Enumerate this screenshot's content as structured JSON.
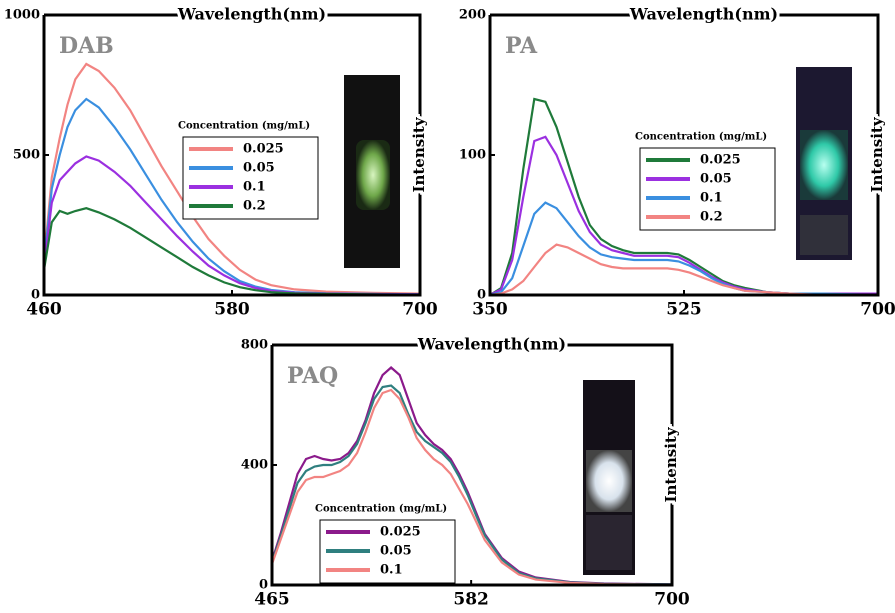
{
  "chart_data": [
    {
      "type": "line",
      "title": "DAB",
      "x_label": "Wavelength(nm)",
      "y_label": "Intensity",
      "legend_title": "Concentration (mg/mL)",
      "xlim": [
        460,
        700
      ],
      "xticks": [
        460,
        580,
        700
      ],
      "ylim": [
        0,
        1000
      ],
      "yticks": [
        0,
        500,
        1000
      ],
      "x": [
        460,
        465,
        470,
        475,
        480,
        487,
        495,
        505,
        515,
        525,
        535,
        545,
        555,
        565,
        575,
        585,
        595,
        605,
        620,
        640,
        670,
        700
      ],
      "series": [
        {
          "name": "0.025",
          "color": "#f28482",
          "values": [
            120,
            420,
            560,
            680,
            770,
            825,
            800,
            740,
            660,
            560,
            460,
            370,
            280,
            200,
            140,
            90,
            55,
            35,
            20,
            12,
            8,
            5
          ]
        },
        {
          "name": "0.05",
          "color": "#3a8fe0",
          "values": [
            110,
            380,
            500,
            600,
            660,
            700,
            670,
            600,
            520,
            430,
            340,
            260,
            190,
            130,
            85,
            50,
            30,
            18,
            10,
            6,
            4,
            3
          ]
        },
        {
          "name": "0.1",
          "color": "#9b30e0",
          "values": [
            100,
            330,
            410,
            440,
            470,
            495,
            480,
            440,
            390,
            330,
            270,
            210,
            155,
            105,
            70,
            42,
            25,
            15,
            8,
            5,
            3,
            2
          ]
        },
        {
          "name": "0.2",
          "color": "#1f7a3a",
          "values": [
            90,
            260,
            300,
            290,
            300,
            310,
            295,
            270,
            240,
            205,
            170,
            135,
            100,
            70,
            45,
            28,
            17,
            10,
            6,
            4,
            2,
            1
          ]
        }
      ]
    },
    {
      "type": "line",
      "title": "PA",
      "x_label": "Wavelength(nm)",
      "y_label": "Intensity",
      "legend_title": "Concentration (mg/mL)",
      "xlim": [
        350,
        700
      ],
      "xticks": [
        350,
        525,
        700
      ],
      "ylim": [
        0,
        200
      ],
      "yticks": [
        0,
        100,
        200
      ],
      "x": [
        350,
        360,
        370,
        380,
        390,
        400,
        410,
        420,
        430,
        440,
        450,
        460,
        470,
        480,
        490,
        500,
        510,
        520,
        530,
        540,
        550,
        560,
        570,
        580,
        600,
        620,
        650,
        700
      ],
      "series": [
        {
          "name": "0.025",
          "color": "#1f7a3a",
          "values": [
            0,
            5,
            30,
            90,
            140,
            138,
            120,
            95,
            70,
            50,
            40,
            35,
            32,
            30,
            30,
            30,
            30,
            29,
            25,
            20,
            15,
            10,
            7,
            5,
            2,
            1,
            1,
            1
          ]
        },
        {
          "name": "0.05",
          "color": "#9b30e0",
          "values": [
            0,
            4,
            25,
            70,
            110,
            113,
            100,
            80,
            60,
            45,
            36,
            32,
            30,
            28,
            28,
            28,
            28,
            27,
            23,
            18,
            13,
            9,
            6,
            4,
            2,
            1,
            1,
            1
          ]
        },
        {
          "name": "0.1",
          "color": "#3a8fe0",
          "values": [
            0,
            2,
            12,
            35,
            58,
            66,
            62,
            52,
            42,
            34,
            29,
            27,
            26,
            25,
            25,
            25,
            25,
            24,
            21,
            17,
            12,
            8,
            5,
            3,
            2,
            1,
            1,
            0
          ]
        },
        {
          "name": "0.2",
          "color": "#f28482",
          "values": [
            0,
            1,
            4,
            10,
            20,
            30,
            36,
            34,
            30,
            26,
            22,
            20,
            19,
            19,
            19,
            19,
            19,
            18,
            16,
            13,
            10,
            7,
            5,
            3,
            2,
            1,
            0,
            0
          ]
        }
      ]
    },
    {
      "type": "line",
      "title": "PAQ",
      "x_label": "Wavelength(nm)",
      "y_label": "Intensity",
      "legend_title": "Concentration (mg/mL)",
      "xlim": [
        465,
        700
      ],
      "xticks": [
        465,
        582,
        700
      ],
      "ylim": [
        0,
        800
      ],
      "yticks": [
        0,
        400,
        800
      ],
      "x": [
        465,
        470,
        475,
        480,
        485,
        490,
        495,
        500,
        505,
        510,
        515,
        520,
        525,
        530,
        535,
        540,
        545,
        550,
        555,
        560,
        565,
        570,
        575,
        580,
        585,
        590,
        600,
        610,
        620,
        640,
        660,
        700
      ],
      "series": [
        {
          "name": "0.025",
          "color": "#8b1a8b",
          "values": [
            80,
            170,
            270,
            370,
            420,
            430,
            420,
            415,
            420,
            440,
            480,
            550,
            640,
            700,
            725,
            700,
            620,
            540,
            500,
            470,
            450,
            420,
            370,
            310,
            240,
            170,
            90,
            45,
            25,
            10,
            5,
            2
          ]
        },
        {
          "name": "0.05",
          "color": "#2f7f7f",
          "values": [
            75,
            160,
            250,
            340,
            380,
            395,
            400,
            400,
            410,
            430,
            470,
            540,
            620,
            660,
            665,
            640,
            570,
            510,
            480,
            460,
            440,
            410,
            360,
            300,
            230,
            165,
            85,
            40,
            22,
            9,
            4,
            2
          ]
        },
        {
          "name": "0.1",
          "color": "#f28482",
          "values": [
            70,
            150,
            230,
            310,
            350,
            360,
            360,
            370,
            380,
            400,
            440,
            510,
            590,
            640,
            650,
            620,
            560,
            490,
            450,
            420,
            400,
            370,
            320,
            270,
            210,
            150,
            75,
            35,
            18,
            7,
            3,
            1
          ]
        }
      ]
    }
  ]
}
